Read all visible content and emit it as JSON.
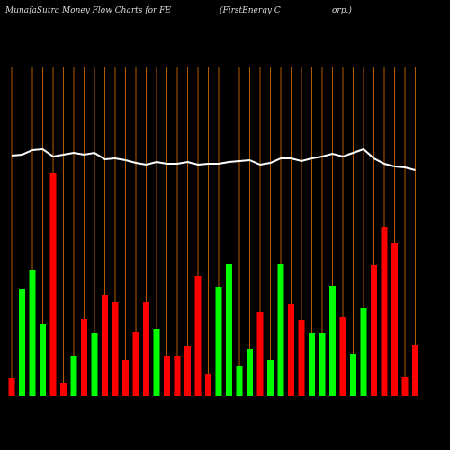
{
  "chart_data": {
    "type": "bar",
    "title": "MunafaSutra  Money Flow  Charts for FE",
    "subtitle": "(FirstEnergy C                    orp.)",
    "categories": [
      null,
      null,
      null,
      null,
      null,
      null,
      null,
      null,
      null,
      null,
      null,
      null,
      null,
      null,
      null,
      null,
      null,
      null,
      null,
      null,
      null,
      null,
      null,
      null,
      null,
      null,
      null,
      null,
      null,
      null,
      null,
      null,
      null,
      null,
      null,
      null,
      null,
      null,
      null,
      null
    ],
    "series": [
      {
        "type": "bar",
        "values": [
          20,
          119,
          140,
          80,
          248,
          15,
          45,
          86,
          70,
          112,
          105,
          40,
          71,
          105,
          75,
          45,
          45,
          56,
          133,
          24,
          121,
          147,
          33,
          52,
          93,
          40,
          147,
          102,
          84,
          70,
          70,
          122,
          88,
          47,
          98,
          146,
          188,
          170,
          21,
          57
        ],
        "colors": [
          "#ff0000",
          "#00ff00",
          "#00ff00",
          "#00ff00",
          "#ff0000",
          "#ff0000",
          "#00ff00",
          "#ff0000",
          "#00ff00",
          "#ff0000",
          "#ff0000",
          "#ff0000",
          "#ff0000",
          "#ff0000",
          "#00ff00",
          "#ff0000",
          "#ff0000",
          "#ff0000",
          "#ff0000",
          "#ff0000",
          "#00ff00",
          "#00ff00",
          "#00ff00",
          "#00ff00",
          "#ff0000",
          "#00ff00",
          "#00ff00",
          "#ff0000",
          "#ff0000",
          "#00ff00",
          "#00ff00",
          "#00ff00",
          "#ff0000",
          "#00ff00",
          "#00ff00",
          "#ff0000",
          "#ff0000",
          "#ff0000",
          "#ff0000",
          "#ff0000"
        ]
      },
      {
        "type": "line",
        "color": "#ffffff",
        "values": [
          267,
          268,
          273,
          274,
          266,
          268,
          270,
          268,
          270,
          263,
          264,
          262,
          259,
          257,
          260,
          258,
          258,
          260,
          257,
          258,
          258,
          260,
          261,
          262,
          257,
          259,
          264,
          264,
          261,
          264,
          266,
          269,
          266,
          270,
          274,
          264,
          258,
          255,
          254,
          251
        ]
      }
    ],
    "ylim": [
      0,
      380
    ],
    "grid": true,
    "grid_color": "#b35900",
    "background": "#000000"
  }
}
